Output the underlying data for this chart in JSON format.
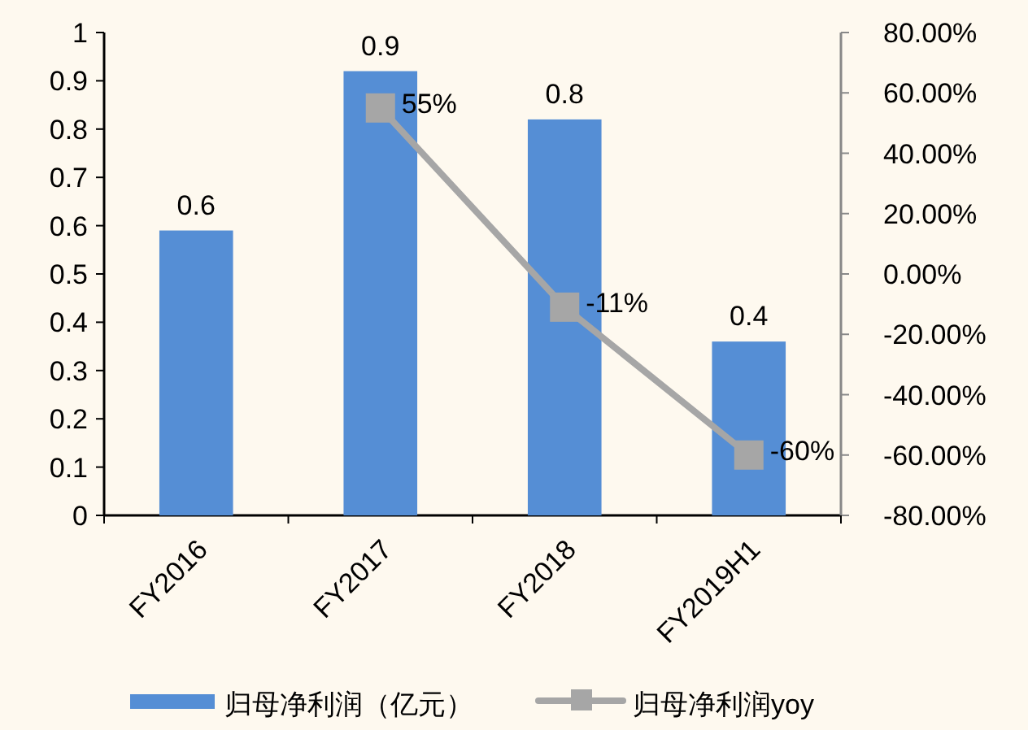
{
  "chart_data": {
    "type": "bar",
    "categories": [
      "FY2016",
      "FY2017",
      "FY2018",
      "FY2019H1"
    ],
    "series": [
      {
        "name": "归母净利润（亿元）",
        "color": "#558ed5",
        "values": [
          0.59,
          0.92,
          0.82,
          0.36
        ],
        "value_labels": [
          "0.6",
          "0.9",
          "0.8",
          "0.4"
        ]
      },
      {
        "name": "归母净利润yoy",
        "type": "line",
        "axis": "y2",
        "color": "#a6a6a6",
        "marker": "square",
        "values": [
          null,
          55,
          -11,
          -60
        ],
        "value_labels": [
          null,
          "55%",
          "-11%",
          "-60%"
        ]
      }
    ],
    "ylim": [
      0,
      1
    ],
    "yticks": [
      0,
      0.1,
      0.2,
      0.3,
      0.4,
      0.5,
      0.6,
      0.7,
      0.8,
      0.9,
      1
    ],
    "y2lim": [
      -80,
      80
    ],
    "y2ticks": [
      {
        "value": -80,
        "label": "-80.00%"
      },
      {
        "value": -60,
        "label": "-60.00%"
      },
      {
        "value": -40,
        "label": "-40.00%"
      },
      {
        "value": -20,
        "label": "-20.00%"
      },
      {
        "value": 0,
        "label": "0.00%"
      },
      {
        "value": 20,
        "label": "20.00%"
      },
      {
        "value": 40,
        "label": "40.00%"
      },
      {
        "value": 60,
        "label": "60.00%"
      },
      {
        "value": 80,
        "label": "80.00%"
      }
    ],
    "grid": false,
    "legend": "bottom"
  }
}
